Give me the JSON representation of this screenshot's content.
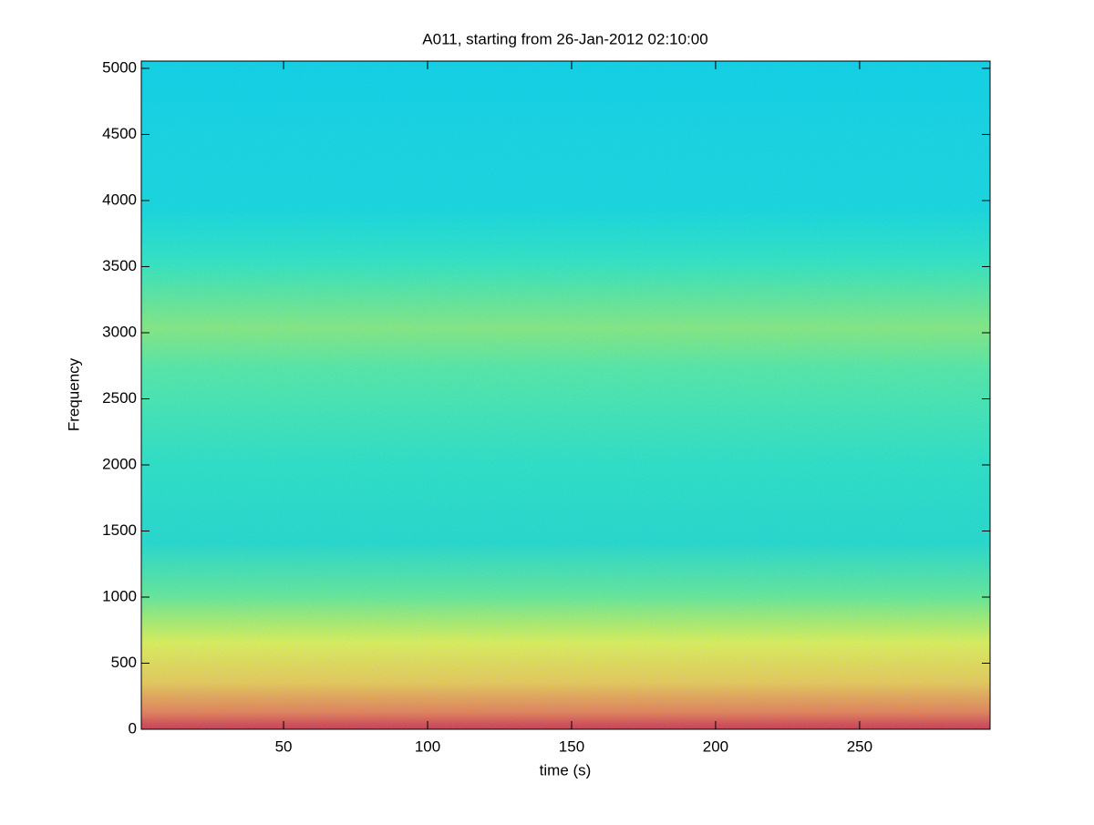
{
  "chart_data": {
    "type": "spectrogram",
    "title": "A011, starting from 26-Jan-2012 02:10:00",
    "xlabel": "time (s)",
    "ylabel": "Frequency",
    "xlim": [
      0.6,
      295.3
    ],
    "xticks": [
      50,
      100,
      150,
      200,
      250
    ],
    "ylim": [
      0,
      5055
    ],
    "yticks": [
      0,
      500,
      1000,
      1500,
      2000,
      2500,
      3000,
      3500,
      4000,
      4500,
      5000
    ]
  }
}
